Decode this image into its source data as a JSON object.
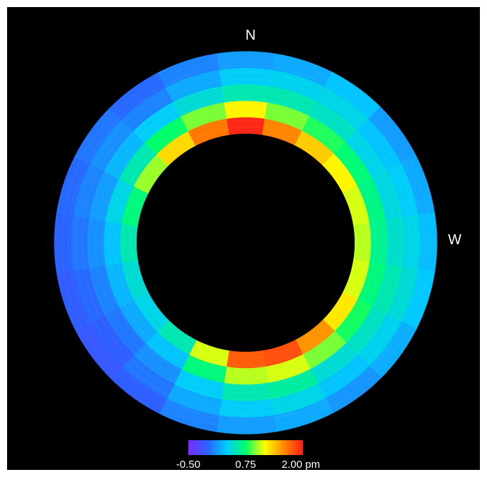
{
  "chart_data": {
    "type": "heatmap",
    "layout": "polar-annulus",
    "compass_labels": [
      "N",
      "W"
    ],
    "colorbar": {
      "min": -0.5,
      "max": 2.0,
      "ticks": [
        "-0.50",
        "0.75",
        "2.00 pm"
      ],
      "colors": [
        "#7d2bff",
        "#2b62ff",
        "#00ccff",
        "#00ff6a",
        "#ffff00",
        "#ff8a00",
        "#ff1a1a"
      ]
    },
    "angles_deg": [
      0,
      18,
      36,
      54,
      72,
      90,
      108,
      126,
      144,
      162,
      180,
      198,
      216,
      234,
      252,
      270,
      288,
      306,
      324,
      342
    ],
    "rings": [
      {
        "values": [
          1.95,
          1.6,
          1.35,
          1.2,
          1.1,
          1.05,
          1.1,
          1.25,
          1.55,
          1.8,
          1.75,
          1.1,
          0.55,
          0.4,
          0.45,
          0.55,
          0.7,
          1.0,
          1.3,
          1.65
        ]
      },
      {
        "values": [
          1.2,
          0.95,
          0.8,
          0.72,
          0.68,
          0.65,
          0.7,
          0.78,
          0.95,
          1.1,
          1.05,
          0.7,
          0.3,
          0.2,
          0.25,
          0.3,
          0.4,
          0.55,
          0.75,
          0.95
        ]
      },
      {
        "values": [
          0.55,
          0.55,
          0.5,
          0.4,
          0.42,
          0.48,
          0.55,
          0.5,
          0.45,
          0.6,
          0.55,
          0.35,
          0.1,
          0.0,
          0.05,
          0.1,
          0.15,
          0.25,
          0.35,
          0.45
        ]
      },
      {
        "values": [
          0.35,
          0.38,
          0.4,
          0.3,
          0.35,
          0.4,
          0.45,
          0.38,
          0.3,
          0.4,
          0.35,
          0.2,
          0.0,
          -0.1,
          -0.05,
          0.0,
          0.05,
          0.1,
          0.05,
          0.2
        ]
      },
      {
        "values": [
          0.15,
          0.2,
          0.3,
          0.15,
          0.2,
          0.28,
          0.32,
          0.22,
          0.12,
          0.2,
          0.15,
          0.05,
          -0.1,
          -0.15,
          -0.12,
          -0.08,
          -0.05,
          0.0,
          -0.05,
          0.05
        ]
      }
    ]
  }
}
